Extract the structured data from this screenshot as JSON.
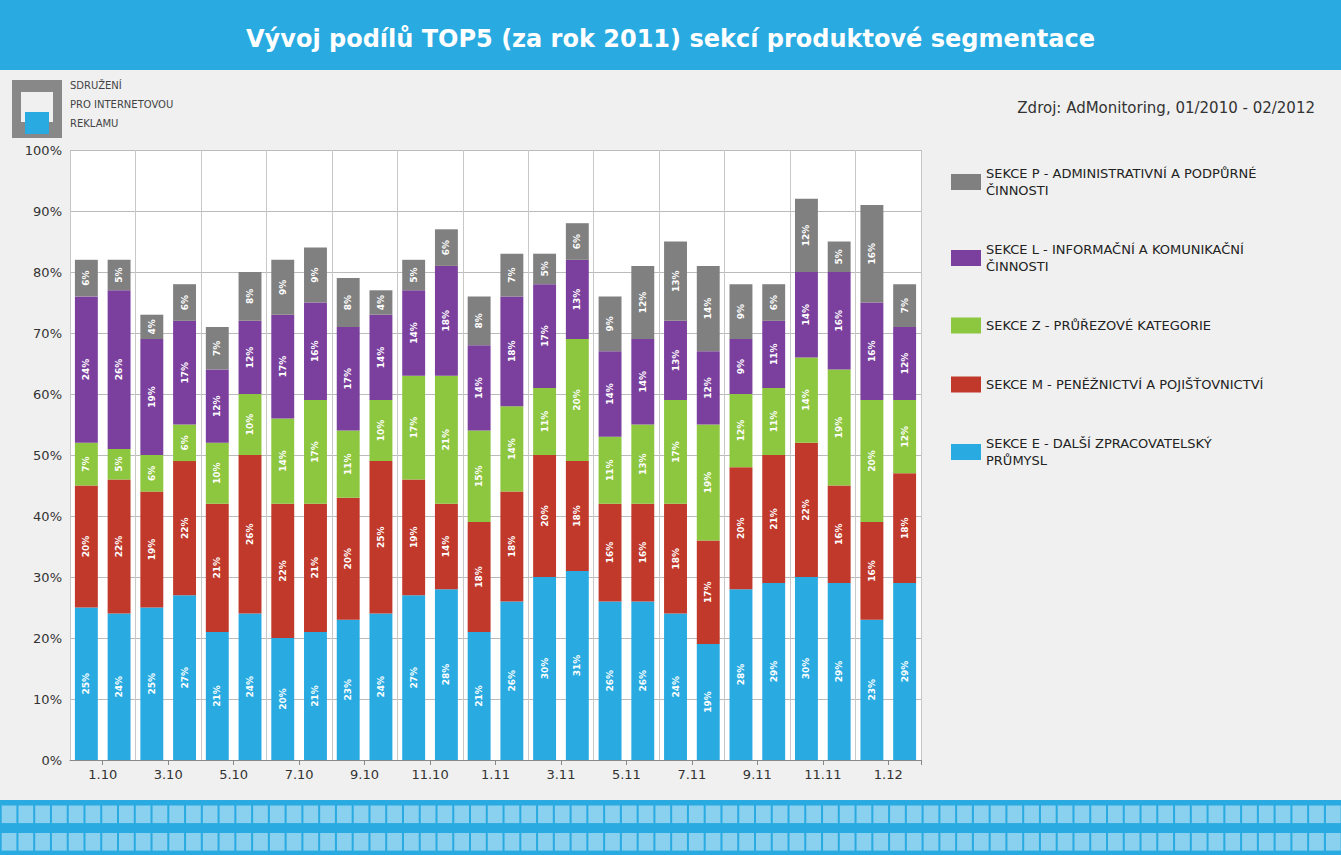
{
  "chart_data": {
    "type": "bar",
    "title": "Vývoj podílů TOP5 (za rok 2011) sekcí produktové segmentace",
    "annotations": [
      "Zdroj: AdMonitoring, 01/2010 - 02/2012",
      "SDRUŽENÍ",
      "PRO INTERNETOVOU",
      "REKLAMU"
    ],
    "categories": [
      "1.10",
      null,
      "3.10",
      null,
      "5.10",
      null,
      "7.10",
      null,
      "9.10",
      null,
      "11.10",
      null,
      "1.11",
      null,
      "3.11",
      null,
      "5.11",
      null,
      "7.11",
      null,
      "9.11",
      null,
      "11.11",
      null,
      "1.12",
      null
    ],
    "stacked": true,
    "data_labels": true,
    "grid": true,
    "legend": "right",
    "ylim": [
      0,
      100
    ],
    "yticks": [
      {
        "value": 0,
        "label": "0%"
      },
      {
        "value": 10,
        "label": "10%"
      },
      {
        "value": 20,
        "label": "20%"
      },
      {
        "value": 30,
        "label": "30%"
      },
      {
        "value": 40,
        "label": "40%"
      },
      {
        "value": 50,
        "label": "50%"
      },
      {
        "value": 60,
        "label": "60%"
      },
      {
        "value": 70,
        "label": "70%"
      },
      {
        "value": 80,
        "label": "80%"
      },
      {
        "value": 90,
        "label": "90%"
      },
      {
        "value": 100,
        "label": "100%"
      }
    ],
    "series": [
      {
        "name": "SEKCE E - DALŠÍ ZPRACOVATELSKÝ\nPRŮMYSL",
        "color": "#29ABE2",
        "values": [
          25,
          24,
          25,
          27,
          21,
          24,
          20,
          21,
          23,
          24,
          27,
          28,
          21,
          26,
          30,
          31,
          26,
          26,
          24,
          19,
          28,
          29,
          30,
          29,
          23,
          29
        ],
        "value_labels": [
          "25%",
          "24%",
          "25%",
          "27%",
          "21%",
          "24%",
          "20%",
          "21%",
          "23%",
          "24%",
          "27%",
          "28%",
          "21%",
          "26%",
          "30%",
          "31%",
          "26%",
          "26%",
          "24%",
          "19%",
          "28%",
          "29%",
          "30%",
          "29%",
          "23%",
          "29%"
        ]
      },
      {
        "name": "SEKCE M - PENĚŽNICTVÍ A POJIŠŤOVNICTVÍ",
        "color": "#C0392B",
        "values": [
          20,
          22,
          19,
          22,
          21,
          26,
          22,
          21,
          20,
          25,
          19,
          14,
          18,
          18,
          20,
          18,
          16,
          16,
          18,
          17,
          20,
          21,
          22,
          16,
          16,
          18
        ],
        "value_labels": [
          "20%",
          "22%",
          "19%",
          "22%",
          "21%",
          "26%",
          "22%",
          "21%",
          "20%",
          "25%",
          "19%",
          "14%",
          "18%",
          "18%",
          "20%",
          "18%",
          "16%",
          "16%",
          "18%",
          "17%",
          "20%",
          "21%",
          "22%",
          "16%",
          "16%",
          "18%"
        ]
      },
      {
        "name": "SEKCE Z - PRŮŘEZOVÉ KATEGORIE",
        "color": "#8DC63F",
        "values": [
          7,
          5,
          6,
          6,
          10,
          10,
          14,
          17,
          11,
          10,
          17,
          21,
          15,
          14,
          11,
          20,
          11,
          13,
          17,
          19,
          12,
          11,
          14,
          19,
          20,
          12
        ],
        "value_labels": [
          "7%",
          "5%",
          "6%",
          "6%",
          "10%",
          "10%",
          "14%",
          "17%",
          "11%",
          "10%",
          "17%",
          "21%",
          "15%",
          "14%",
          "11%",
          "20%",
          "11%",
          "13%",
          "17%",
          "19%",
          "12%",
          "11%",
          "14%",
          "19%",
          "20%",
          "12%"
        ]
      },
      {
        "name": "SEKCE L - INFORMAČNÍ A KOMUNIKAČNÍ\nČINNOSTI",
        "color": "#7B3F9E",
        "values": [
          24,
          26,
          19,
          17,
          12,
          12,
          17,
          16,
          17,
          14,
          14,
          18,
          14,
          18,
          17,
          13,
          14,
          14,
          13,
          12,
          9,
          11,
          14,
          16,
          16,
          12
        ],
        "value_labels": [
          "24%",
          "26%",
          "19%",
          "17%",
          "12%",
          "12%",
          "17%",
          "16%",
          "17%",
          "14%",
          "14%",
          "18%",
          "14%",
          "18%",
          "17%",
          "13%",
          "14%",
          "14%",
          "13%",
          "12%",
          "9%",
          "11%",
          "14%",
          "16%",
          "16%",
          "12%"
        ]
      },
      {
        "name": "SEKCE P - ADMINISTRATIVNÍ A PODPŮRNÉ\nČINNOSTI",
        "color": "#808080",
        "values": [
          6,
          5,
          4,
          6,
          7,
          8,
          9,
          9,
          8,
          4,
          5,
          6,
          8,
          7,
          5,
          6,
          9,
          12,
          13,
          14,
          9,
          6,
          12,
          5,
          16,
          7
        ],
        "value_labels": [
          "6%",
          "5%",
          "4%",
          "6%",
          "7%",
          "8%",
          "9%",
          "9%",
          "8%",
          "4%",
          "5%",
          "6%",
          "8%",
          "7%",
          "5%",
          "6%",
          "9%",
          "12%",
          "13%",
          "14%",
          "9%",
          "6%",
          "12%",
          "5%",
          "16%",
          "7%"
        ]
      }
    ]
  }
}
